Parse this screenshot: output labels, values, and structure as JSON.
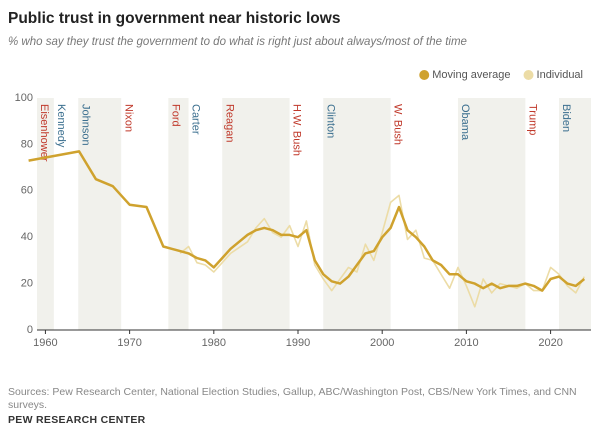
{
  "chart_data": {
    "type": "line",
    "title": "Public trust in government near historic lows",
    "subtitle": "% who say they trust the government to do what is right just about always/most of the time",
    "source": "Sources: Pew Research Center, National Election Studies, Gallup, ABC/Washington Post, CBS/New York Times, and CNN surveys.",
    "brand": "PEW RESEARCH CENTER",
    "xlim": [
      1959,
      2024.8
    ],
    "ylim": [
      0,
      100
    ],
    "xticks": [
      1960,
      1970,
      1980,
      1990,
      2000,
      2010,
      2020
    ],
    "yticks": [
      0,
      20,
      40,
      60,
      80,
      100
    ],
    "grid": false,
    "legend": "top-right",
    "presidents": [
      {
        "name": "Eisenhower",
        "start": 1959,
        "end": 1961,
        "color": "#c0392b",
        "shaded": true
      },
      {
        "name": "Kennedy",
        "start": 1961,
        "end": 1963.9,
        "color": "#3b6f8f",
        "shaded": false
      },
      {
        "name": "Johnson",
        "start": 1963.9,
        "end": 1969,
        "color": "#3b6f8f",
        "shaded": true
      },
      {
        "name": "Nixon",
        "start": 1969,
        "end": 1974.6,
        "color": "#c0392b",
        "shaded": false
      },
      {
        "name": "Ford",
        "start": 1974.6,
        "end": 1977,
        "color": "#c0392b",
        "shaded": true
      },
      {
        "name": "Carter",
        "start": 1977,
        "end": 1981,
        "color": "#3b6f8f",
        "shaded": false
      },
      {
        "name": "Reagan",
        "start": 1981,
        "end": 1989,
        "color": "#c0392b",
        "shaded": true
      },
      {
        "name": "H.W. Bush",
        "start": 1989,
        "end": 1993,
        "color": "#c0392b",
        "shaded": false
      },
      {
        "name": "Clinton",
        "start": 1993,
        "end": 2001,
        "color": "#3b6f8f",
        "shaded": true
      },
      {
        "name": "W. Bush",
        "start": 2001,
        "end": 2009,
        "color": "#c0392b",
        "shaded": false
      },
      {
        "name": "Obama",
        "start": 2009,
        "end": 2017,
        "color": "#3b6f8f",
        "shaded": true
      },
      {
        "name": "Trump",
        "start": 2017,
        "end": 2021,
        "color": "#c0392b",
        "shaded": false
      },
      {
        "name": "Biden",
        "start": 2021,
        "end": 2024.8,
        "color": "#3b6f8f",
        "shaded": true
      }
    ],
    "series": [
      {
        "name": "Moving average",
        "color": "#cfa22e",
        "width": 2.5,
        "x": [
          1958,
          1964,
          1966,
          1968,
          1970,
          1972,
          1974,
          1975,
          1976,
          1977,
          1978,
          1979,
          1980,
          1981,
          1982,
          1983,
          1984,
          1985,
          1986,
          1987,
          1988,
          1989,
          1990,
          1991,
          1992,
          1993,
          1994,
          1995,
          1996,
          1997,
          1998,
          1999,
          2000,
          2001,
          2002,
          2003,
          2004,
          2005,
          2006,
          2007,
          2008,
          2009,
          2010,
          2011,
          2012,
          2013,
          2014,
          2015,
          2016,
          2017,
          2018,
          2019,
          2020,
          2021,
          2022,
          2023,
          2024
        ],
        "values": [
          73,
          77,
          65,
          62,
          54,
          53,
          36,
          35,
          34,
          33,
          31,
          30,
          27,
          31,
          35,
          38,
          41,
          43,
          44,
          43,
          41,
          41,
          40,
          43,
          30,
          24,
          21,
          20,
          23,
          28,
          33,
          34,
          40,
          44,
          53,
          43,
          40,
          36,
          30,
          28,
          24,
          24,
          21,
          20,
          18,
          20,
          18,
          19,
          19,
          20,
          19,
          17,
          22,
          23,
          20,
          19,
          22
        ]
      },
      {
        "name": "Individual",
        "color": "#ecdca6",
        "width": 1.6,
        "x": [
          1976,
          1977,
          1978,
          1979,
          1980,
          1982,
          1984,
          1985,
          1986,
          1987,
          1988,
          1989,
          1990,
          1991,
          1992,
          1993,
          1994,
          1995,
          1996,
          1997,
          1998,
          1999,
          2000,
          2001,
          2002,
          2003,
          2004,
          2005,
          2006,
          2007,
          2008,
          2009,
          2010,
          2011,
          2012,
          2013,
          2014,
          2015,
          2016,
          2017,
          2018,
          2019,
          2020,
          2021,
          2022,
          2023,
          2024
        ],
        "values": [
          33,
          36,
          29,
          28,
          25,
          33,
          38,
          44,
          48,
          42,
          40,
          45,
          36,
          47,
          28,
          22,
          17,
          22,
          27,
          25,
          37,
          30,
          42,
          55,
          58,
          39,
          43,
          31,
          30,
          24,
          18,
          27,
          19,
          10,
          22,
          16,
          20,
          19,
          18,
          20,
          17,
          17,
          27,
          24,
          19,
          16,
          23
        ]
      }
    ]
  }
}
